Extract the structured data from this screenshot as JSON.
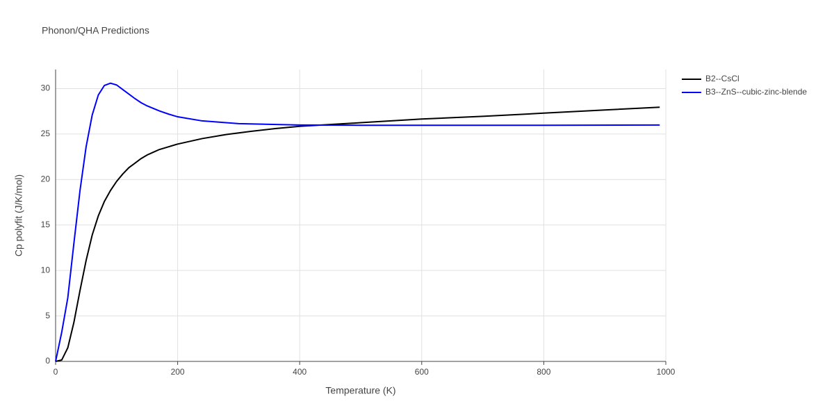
{
  "chart_data": {
    "type": "line",
    "title": "Phonon/QHA Predictions",
    "x_label": "Temperature (K)",
    "y_label": "Cp polyfit (J/K/mol)",
    "xlim": [
      0,
      1000
    ],
    "ylim": [
      0,
      32.1
    ],
    "xticks": [
      0,
      200,
      400,
      600,
      800,
      1000
    ],
    "yticks": [
      0,
      5,
      10,
      15,
      20,
      25,
      30
    ],
    "grid": true,
    "legend": "top-right",
    "series": [
      {
        "name": "B2--CsCl",
        "color": "#000000",
        "x": [
          0,
          10,
          20,
          30,
          40,
          50,
          60,
          70,
          80,
          90,
          100,
          110,
          120,
          130,
          140,
          150,
          160,
          170,
          180,
          200,
          240,
          280,
          320,
          360,
          400,
          450,
          500,
          600,
          700,
          800,
          900,
          990
        ],
        "values": [
          0,
          0.15,
          1.5,
          4.3,
          7.8,
          11.1,
          13.9,
          16.0,
          17.6,
          18.8,
          19.8,
          20.6,
          21.3,
          21.8,
          22.3,
          22.7,
          23.0,
          23.3,
          23.5,
          23.9,
          24.5,
          24.95,
          25.3,
          25.6,
          25.85,
          26.05,
          26.25,
          26.65,
          26.95,
          27.3,
          27.65,
          27.95
        ]
      },
      {
        "name": "B3--ZnS--cubic-zinc-blende",
        "color": "#0000ff",
        "x": [
          0,
          10,
          20,
          30,
          40,
          50,
          60,
          70,
          80,
          90,
          100,
          110,
          120,
          130,
          140,
          150,
          170,
          185,
          200,
          240,
          300,
          400,
          500,
          600,
          800,
          990
        ],
        "values": [
          0,
          3.2,
          7.0,
          13.0,
          18.8,
          23.6,
          27.1,
          29.3,
          30.35,
          30.6,
          30.4,
          29.9,
          29.4,
          28.9,
          28.45,
          28.1,
          27.55,
          27.2,
          26.9,
          26.45,
          26.15,
          26.0,
          25.97,
          25.97,
          25.97,
          26.0
        ]
      }
    ]
  }
}
